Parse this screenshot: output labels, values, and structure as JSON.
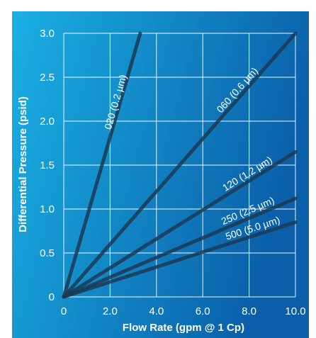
{
  "chart_data": {
    "type": "line",
    "title": "",
    "xlabel": "Flow Rate (gpm @ 1 Cp)",
    "ylabel": "Differential Pressure (psid)",
    "xlim": [
      0,
      10
    ],
    "ylim": [
      0,
      3
    ],
    "x_ticks": [
      "0",
      "2.0",
      "4.0",
      "6.0",
      "8.0",
      "10.0"
    ],
    "y_ticks": [
      "0",
      "0.5",
      "1.0",
      "1.5",
      "2.0",
      "2.5",
      "3.0"
    ],
    "grid": true,
    "series": [
      {
        "name": "020 (0.2 µm)",
        "x": [
          0,
          3.3
        ],
        "y": [
          0,
          3.0
        ]
      },
      {
        "name": "060 (0.6 µm)",
        "x": [
          0,
          10.0
        ],
        "y": [
          0,
          3.0
        ]
      },
      {
        "name": "120 (1.2 µm)",
        "x": [
          0,
          10.0
        ],
        "y": [
          0,
          1.65
        ]
      },
      {
        "name": "250 (2.5 µm)",
        "x": [
          0,
          10.0
        ],
        "y": [
          0,
          1.12
        ]
      },
      {
        "name": "500 (5.0 µm)",
        "x": [
          0,
          10.0
        ],
        "y": [
          0,
          0.85
        ]
      }
    ],
    "colors": {
      "background_left": "#1ab0e4",
      "background_right": "#0a5fa8",
      "grid": "#ffffff",
      "series_line": "#1c3a55",
      "text": "#ffffff"
    }
  }
}
